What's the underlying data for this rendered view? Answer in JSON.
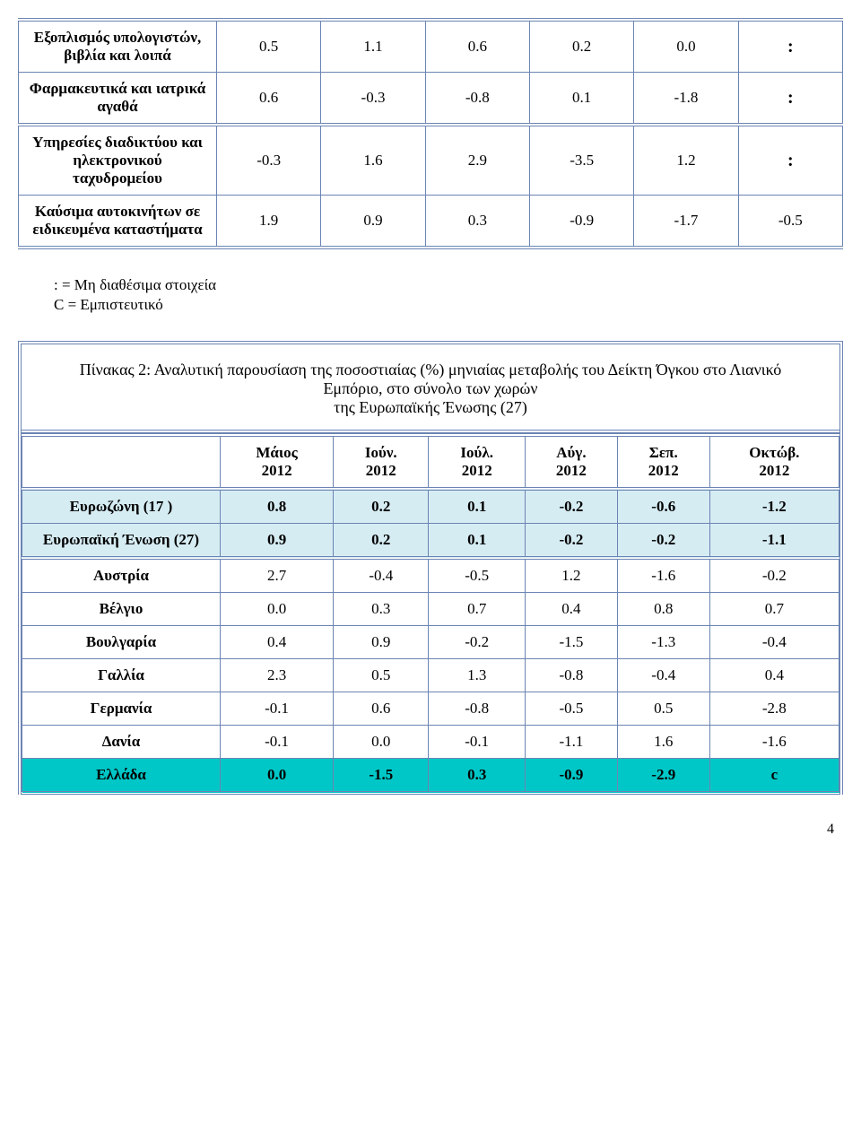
{
  "table1": {
    "columns": [
      "0",
      "1",
      "2",
      "3",
      "4",
      "5"
    ],
    "rows": [
      {
        "label": "Εξοπλισμός υπολογιστών, βιβλία και λοιπά",
        "v": [
          "0.5",
          "1.1",
          "0.6",
          "0.2",
          "0.0",
          ":"
        ]
      },
      {
        "label": "Φαρμακευτικά και ιατρικά αγαθά",
        "v": [
          "0.6",
          "-0.3",
          "-0.8",
          "0.1",
          "-1.8",
          ":"
        ]
      },
      {
        "label": "Υπηρεσίες διαδικτύου και ηλεκτρονικού ταχυδρομείου",
        "v": [
          "-0.3",
          "1.6",
          "2.9",
          "-3.5",
          "1.2",
          ":"
        ]
      },
      {
        "label": "Καύσιμα αυτοκινήτων σε ειδικευμένα καταστήματα",
        "v": [
          "1.9",
          "0.9",
          "0.3",
          "-0.9",
          "-1.7",
          "-0.5"
        ]
      }
    ],
    "border_color": "#6b84b3"
  },
  "notes": {
    "line1": ":   =   Μη διαθέσιμα στοιχεία",
    "line2": "C   =   Εμπιστευτικό"
  },
  "table2": {
    "title": "Πίνακας 2:  Αναλυτική παρουσίαση της ποσοστιαίας  (%) μηνιαίας μεταβολής του Δείκτη Όγκου στο Λιανικό  Εμπόριο, στο σύνολο των χωρών\nτης Ευρωπαϊκής Ένωσης (27)",
    "headers": [
      "Μάιος 2012",
      "Ιούν. 2012",
      "Ιούλ. 2012",
      "Αύγ. 2012",
      "Σεπ. 2012",
      "Οκτώβ. 2012"
    ],
    "eurozone_rows": [
      {
        "label": "Ευρωζώνη (17 )",
        "v": [
          "0.8",
          "0.2",
          "0.1",
          "-0.2",
          "-0.6",
          "-1.2"
        ],
        "bg": "#d6ecf3"
      },
      {
        "label": "Ευρωπαϊκή Ένωση (27)",
        "v": [
          "0.9",
          "0.2",
          "0.1",
          "-0.2",
          "-0.2",
          "-1.1"
        ],
        "bg": "#d6ecf3"
      }
    ],
    "country_rows": [
      {
        "label": "Αυστρία",
        "v": [
          "2.7",
          "-0.4",
          "-0.5",
          "1.2",
          "-1.6",
          "-0.2"
        ]
      },
      {
        "label": "Βέλγιο",
        "v": [
          "0.0",
          "0.3",
          "0.7",
          "0.4",
          "0.8",
          "0.7"
        ]
      },
      {
        "label": "Βουλγαρία",
        "v": [
          "0.4",
          "0.9",
          "-0.2",
          "-1.5",
          "-1.3",
          "-0.4"
        ]
      },
      {
        "label": "Γαλλία",
        "v": [
          "2.3",
          "0.5",
          "1.3",
          "-0.8",
          "-0.4",
          "0.4"
        ]
      },
      {
        "label": "Γερμανία",
        "v": [
          "-0.1",
          "0.6",
          "-0.8",
          "-0.5",
          "0.5",
          "-2.8"
        ]
      },
      {
        "label": "Δανία",
        "v": [
          "-0.1",
          "0.0",
          "-0.1",
          "-1.1",
          "1.6",
          "-1.6"
        ]
      }
    ],
    "greece_row": {
      "label": "Ελλάδα",
      "v": [
        "0.0",
        "-1.5",
        "0.3",
        "-0.9",
        "-2.9",
        "c"
      ],
      "bg": "#00c7c7"
    },
    "border_color": "#6b84b3"
  },
  "page_number": "4"
}
